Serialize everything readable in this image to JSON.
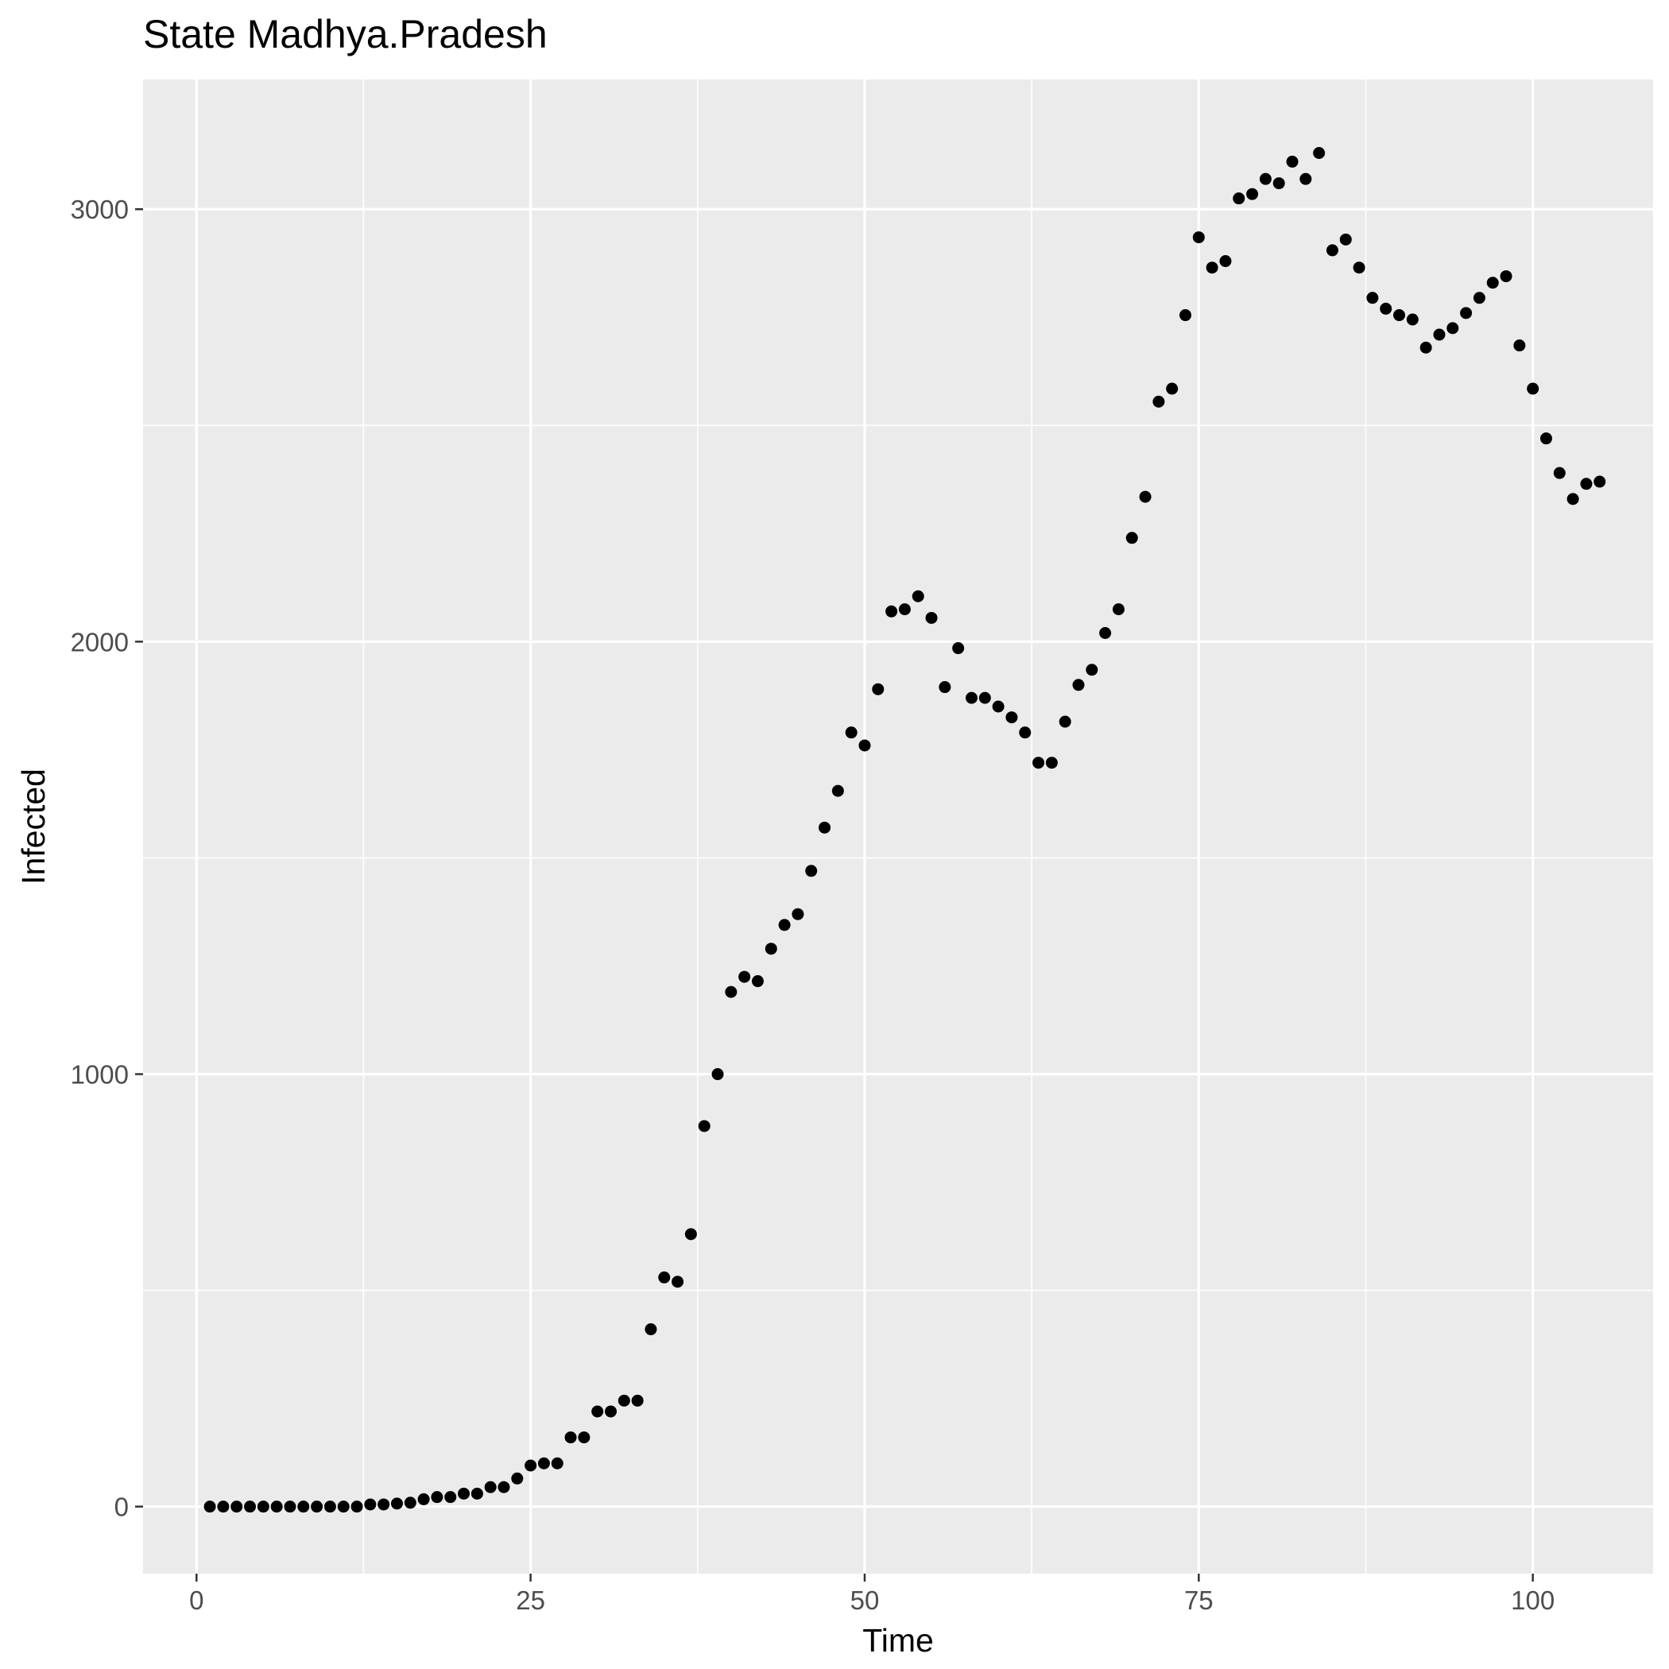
{
  "chart_data": {
    "type": "scatter",
    "title": "State Madhya.Pradesh",
    "xlabel": "Time",
    "ylabel": "Infected",
    "xlim": [
      -4,
      109
    ],
    "ylim": [
      -155,
      3300
    ],
    "x_ticks": [
      0,
      25,
      50,
      75,
      100
    ],
    "y_ticks": [
      0,
      1000,
      2000,
      3000
    ],
    "grid": true,
    "legend": "none",
    "colors": {
      "panel": "#ebebeb",
      "grid_major": "#ffffff",
      "point": "#000000"
    },
    "series": [
      {
        "x": [
          1,
          2,
          3,
          4,
          5,
          6,
          7,
          8,
          9,
          10,
          11,
          12,
          13,
          14,
          15,
          16,
          17,
          18,
          19,
          20,
          21,
          22,
          23,
          24,
          25,
          26,
          27,
          28,
          29,
          30,
          31,
          32,
          33,
          34,
          35,
          36,
          37,
          38,
          39,
          40,
          41,
          42,
          43,
          44,
          45,
          46,
          47,
          48,
          49,
          50,
          51,
          52,
          53,
          54,
          55,
          56,
          57,
          58,
          59,
          60,
          61,
          62,
          63,
          64,
          65,
          66,
          67,
          68,
          69,
          70,
          71,
          72,
          73,
          74,
          75,
          76,
          77,
          78,
          79,
          80,
          81,
          82,
          83,
          84,
          85,
          86,
          87,
          88,
          89,
          90,
          91,
          92,
          93,
          94,
          95,
          96,
          97,
          98,
          99,
          100,
          101,
          102,
          103,
          104,
          105
        ],
        "y": [
          0,
          0,
          0,
          0,
          0,
          0,
          0,
          0,
          0,
          0,
          0,
          0,
          5,
          5,
          7,
          9,
          17,
          22,
          22,
          30,
          30,
          45,
          45,
          65,
          95,
          100,
          100,
          160,
          160,
          220,
          220,
          245,
          245,
          410,
          530,
          520,
          630,
          880,
          1000,
          1190,
          1225,
          1215,
          1290,
          1345,
          1370,
          1470,
          1570,
          1655,
          1790,
          1760,
          1890,
          2070,
          2075,
          2105,
          2055,
          1895,
          1985,
          1870,
          1870,
          1850,
          1825,
          1790,
          1720,
          1720,
          1815,
          1900,
          1935,
          2020,
          2075,
          2240,
          2335,
          2555,
          2585,
          2755,
          2935,
          2865,
          2880,
          3025,
          3035,
          3070,
          3060,
          3110,
          3070,
          3130,
          2905,
          2930,
          2865,
          2795,
          2770,
          2755,
          2745,
          2680,
          2710,
          2725,
          2760,
          2795,
          2830,
          2845,
          2685,
          2585,
          2470,
          2390,
          2330,
          2365,
          2370
        ]
      }
    ]
  }
}
